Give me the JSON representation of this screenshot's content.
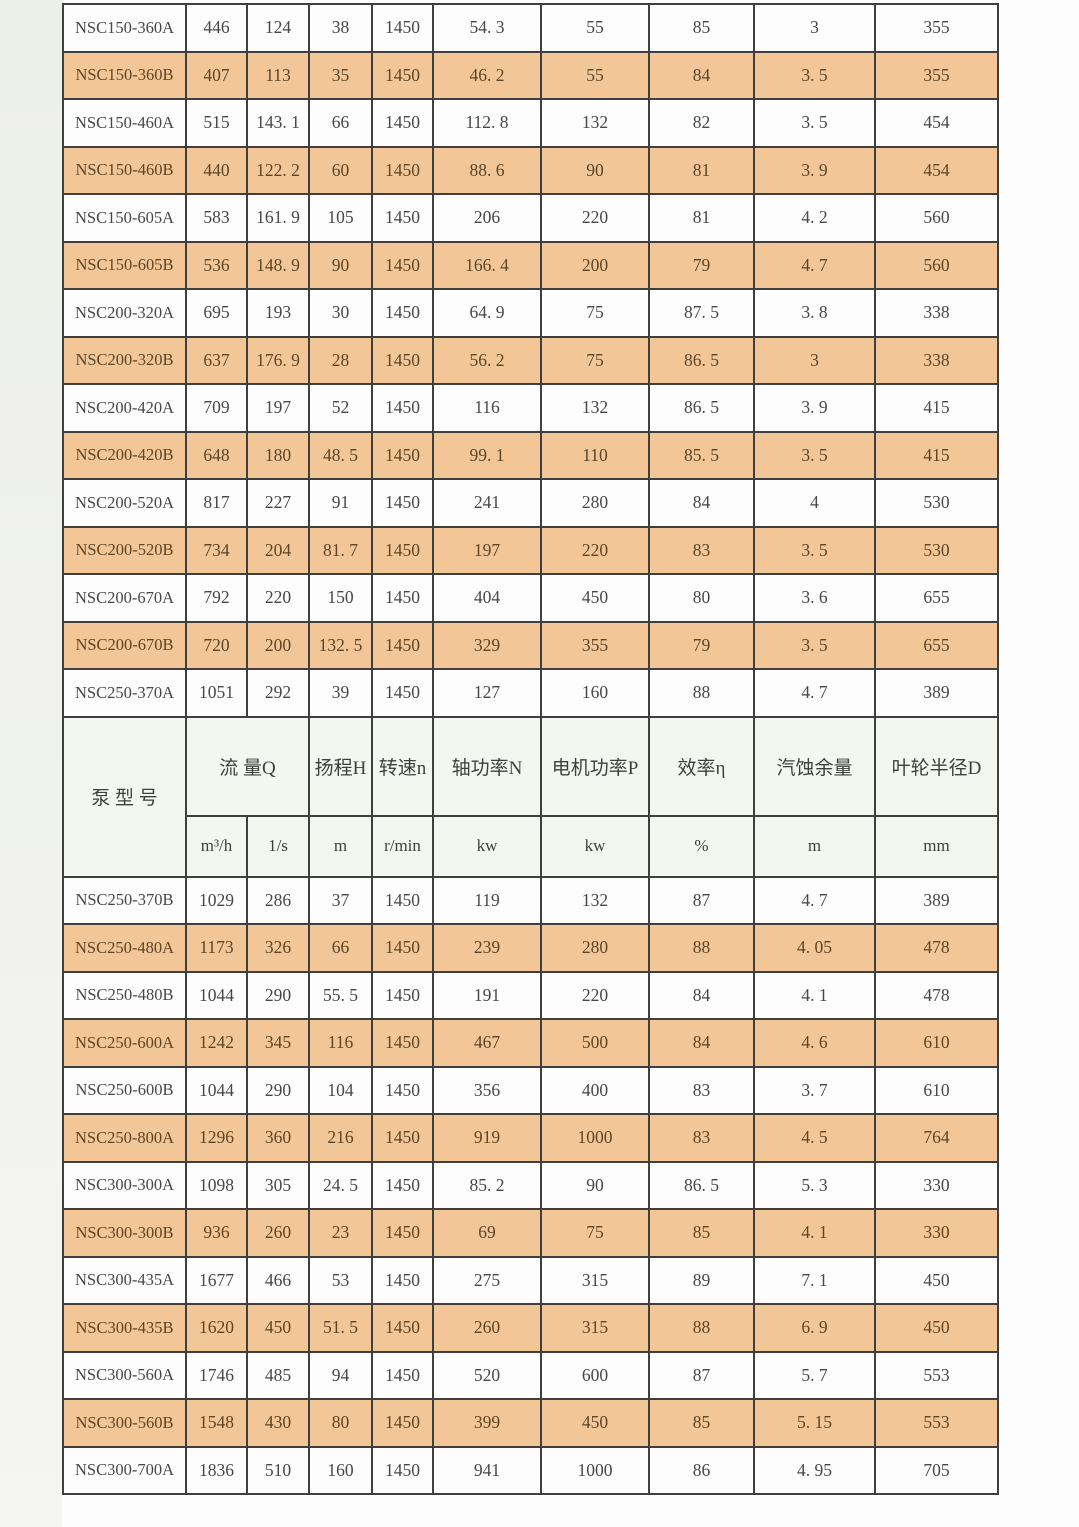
{
  "table": {
    "header": {
      "model_label": "泵 型 号",
      "flow_label": "流 量Q",
      "head_label": "扬程H",
      "speed_label": "转速n",
      "shaft_label": "轴功率N",
      "motor_label": "电机功率P",
      "eff_label": "效率η",
      "npsh_label": "汽蚀余量",
      "impeller_label": "叶轮半径D",
      "units": [
        "m³/h",
        "1/s",
        "m",
        "r/min",
        "kw",
        "kw",
        "%",
        "m",
        "mm"
      ]
    },
    "rows_above_header": [
      [
        "NSC150-360A",
        "446",
        "124",
        "38",
        "1450",
        "54. 3",
        "55",
        "85",
        "3",
        "355"
      ],
      [
        "NSC150-360B",
        "407",
        "113",
        "35",
        "1450",
        "46. 2",
        "55",
        "84",
        "3. 5",
        "355"
      ],
      [
        "NSC150-460A",
        "515",
        "143. 1",
        "66",
        "1450",
        "112. 8",
        "132",
        "82",
        "3. 5",
        "454"
      ],
      [
        "NSC150-460B",
        "440",
        "122. 2",
        "60",
        "1450",
        "88. 6",
        "90",
        "81",
        "3. 9",
        "454"
      ],
      [
        "NSC150-605A",
        "583",
        "161. 9",
        "105",
        "1450",
        "206",
        "220",
        "81",
        "4. 2",
        "560"
      ],
      [
        "NSC150-605B",
        "536",
        "148. 9",
        "90",
        "1450",
        "166. 4",
        "200",
        "79",
        "4. 7",
        "560"
      ],
      [
        "NSC200-320A",
        "695",
        "193",
        "30",
        "1450",
        "64. 9",
        "75",
        "87. 5",
        "3. 8",
        "338"
      ],
      [
        "NSC200-320B",
        "637",
        "176. 9",
        "28",
        "1450",
        "56. 2",
        "75",
        "86. 5",
        "3",
        "338"
      ],
      [
        "NSC200-420A",
        "709",
        "197",
        "52",
        "1450",
        "116",
        "132",
        "86. 5",
        "3. 9",
        "415"
      ],
      [
        "NSC200-420B",
        "648",
        "180",
        "48. 5",
        "1450",
        "99. 1",
        "110",
        "85. 5",
        "3. 5",
        "415"
      ],
      [
        "NSC200-520A",
        "817",
        "227",
        "91",
        "1450",
        "241",
        "280",
        "84",
        "4",
        "530"
      ],
      [
        "NSC200-520B",
        "734",
        "204",
        "81. 7",
        "1450",
        "197",
        "220",
        "83",
        "3. 5",
        "530"
      ],
      [
        "NSC200-670A",
        "792",
        "220",
        "150",
        "1450",
        "404",
        "450",
        "80",
        "3. 6",
        "655"
      ],
      [
        "NSC200-670B",
        "720",
        "200",
        "132. 5",
        "1450",
        "329",
        "355",
        "79",
        "3. 5",
        "655"
      ],
      [
        "NSC250-370A",
        "1051",
        "292",
        "39",
        "1450",
        "127",
        "160",
        "88",
        "4. 7",
        "389"
      ]
    ],
    "rows_below_header": [
      [
        "NSC250-370B",
        "1029",
        "286",
        "37",
        "1450",
        "119",
        "132",
        "87",
        "4. 7",
        "389"
      ],
      [
        "NSC250-480A",
        "1173",
        "326",
        "66",
        "1450",
        "239",
        "280",
        "88",
        "4. 05",
        "478"
      ],
      [
        "NSC250-480B",
        "1044",
        "290",
        "55. 5",
        "1450",
        "191",
        "220",
        "84",
        "4. 1",
        "478"
      ],
      [
        "NSC250-600A",
        "1242",
        "345",
        "116",
        "1450",
        "467",
        "500",
        "84",
        "4. 6",
        "610"
      ],
      [
        "NSC250-600B",
        "1044",
        "290",
        "104",
        "1450",
        "356",
        "400",
        "83",
        "3. 7",
        "610"
      ],
      [
        "NSC250-800A",
        "1296",
        "360",
        "216",
        "1450",
        "919",
        "1000",
        "83",
        "4. 5",
        "764"
      ],
      [
        "NSC300-300A",
        "1098",
        "305",
        "24. 5",
        "1450",
        "85. 2",
        "90",
        "86. 5",
        "5. 3",
        "330"
      ],
      [
        "NSC300-300B",
        "936",
        "260",
        "23",
        "1450",
        "69",
        "75",
        "85",
        "4. 1",
        "330"
      ],
      [
        "NSC300-435A",
        "1677",
        "466",
        "53",
        "1450",
        "275",
        "315",
        "89",
        "7. 1",
        "450"
      ],
      [
        "NSC300-435B",
        "1620",
        "450",
        "51. 5",
        "1450",
        "260",
        "315",
        "88",
        "6. 9",
        "450"
      ],
      [
        "NSC300-560A",
        "1746",
        "485",
        "94",
        "1450",
        "520",
        "600",
        "87",
        "5. 7",
        "553"
      ],
      [
        "NSC300-560B",
        "1548",
        "430",
        "80",
        "1450",
        "399",
        "450",
        "85",
        "5. 15",
        "553"
      ],
      [
        "NSC300-700A",
        "1836",
        "510",
        "160",
        "1450",
        "941",
        "1000",
        "86",
        "4. 95",
        "705"
      ]
    ],
    "colors": {
      "stripe_orange": "#f3c697",
      "header_bg": "#f4f6f0",
      "border": "#3f3f3f",
      "text": "#474747",
      "stripe_text": "#5d4526"
    }
  }
}
